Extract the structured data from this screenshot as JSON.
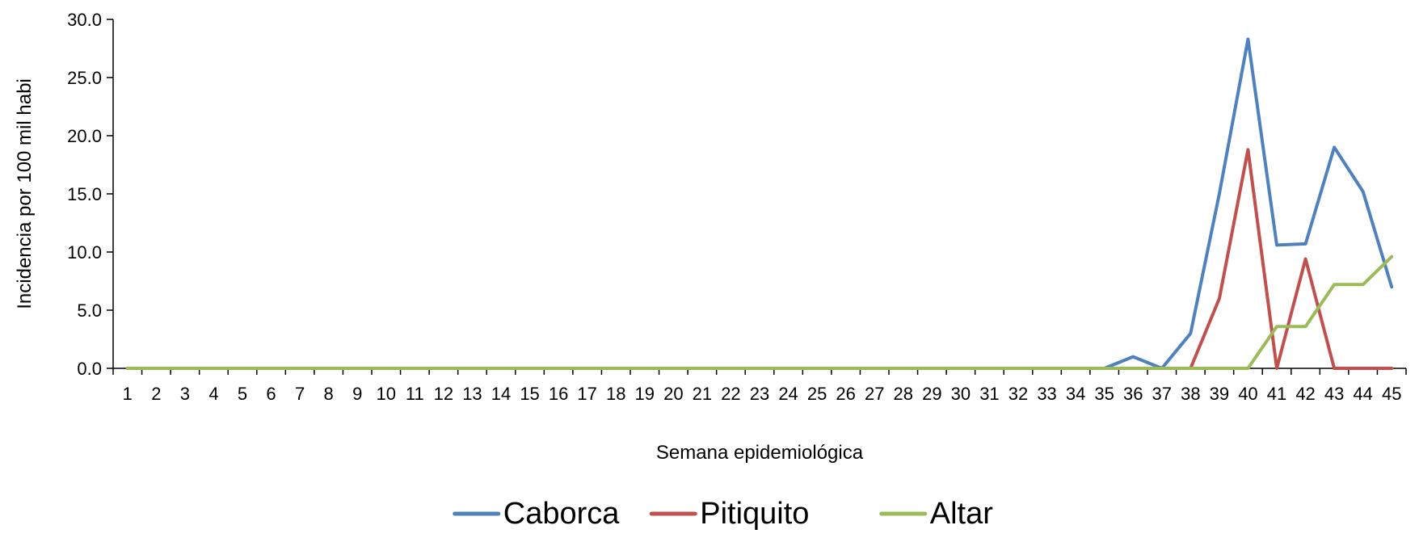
{
  "chart_data": {
    "type": "line",
    "title": "",
    "xlabel": "Semana epidemiológica",
    "ylabel": "Incidencia por 100  mil habi",
    "ylim": [
      0,
      30
    ],
    "yticks": [
      "0.0",
      "5.0",
      "10.0",
      "15.0",
      "20.0",
      "25.0",
      "30.0"
    ],
    "x": [
      1,
      2,
      3,
      4,
      5,
      6,
      7,
      8,
      9,
      10,
      11,
      12,
      13,
      14,
      15,
      16,
      17,
      18,
      19,
      20,
      21,
      22,
      23,
      24,
      25,
      26,
      27,
      28,
      29,
      30,
      31,
      32,
      33,
      34,
      35,
      36,
      37,
      38,
      39,
      40,
      41,
      42,
      43,
      44,
      45
    ],
    "grid": false,
    "legend_position": "bottom",
    "series": [
      {
        "name": "Caborca",
        "color": "#4F81BD",
        "values": [
          0,
          0,
          0,
          0,
          0,
          0,
          0,
          0,
          0,
          0,
          0,
          0,
          0,
          0,
          0,
          0,
          0,
          0,
          0,
          0,
          0,
          0,
          0,
          0,
          0,
          0,
          0,
          0,
          0,
          0,
          0,
          0,
          0,
          0,
          0,
          1.0,
          0,
          3.0,
          15.0,
          28.3,
          10.6,
          10.7,
          19.0,
          15.2,
          7.0
        ]
      },
      {
        "name": "Pitiquito",
        "color": "#C0504D",
        "values": [
          0,
          0,
          0,
          0,
          0,
          0,
          0,
          0,
          0,
          0,
          0,
          0,
          0,
          0,
          0,
          0,
          0,
          0,
          0,
          0,
          0,
          0,
          0,
          0,
          0,
          0,
          0,
          0,
          0,
          0,
          0,
          0,
          0,
          0,
          0,
          0,
          0,
          0,
          6.0,
          18.8,
          0,
          9.4,
          0,
          0,
          0
        ]
      },
      {
        "name": "Altar",
        "color": "#9BBB59",
        "values": [
          0,
          0,
          0,
          0,
          0,
          0,
          0,
          0,
          0,
          0,
          0,
          0,
          0,
          0,
          0,
          0,
          0,
          0,
          0,
          0,
          0,
          0,
          0,
          0,
          0,
          0,
          0,
          0,
          0,
          0,
          0,
          0,
          0,
          0,
          0,
          0,
          0,
          0,
          0,
          0,
          3.6,
          3.6,
          7.2,
          7.2,
          9.6
        ]
      }
    ]
  }
}
